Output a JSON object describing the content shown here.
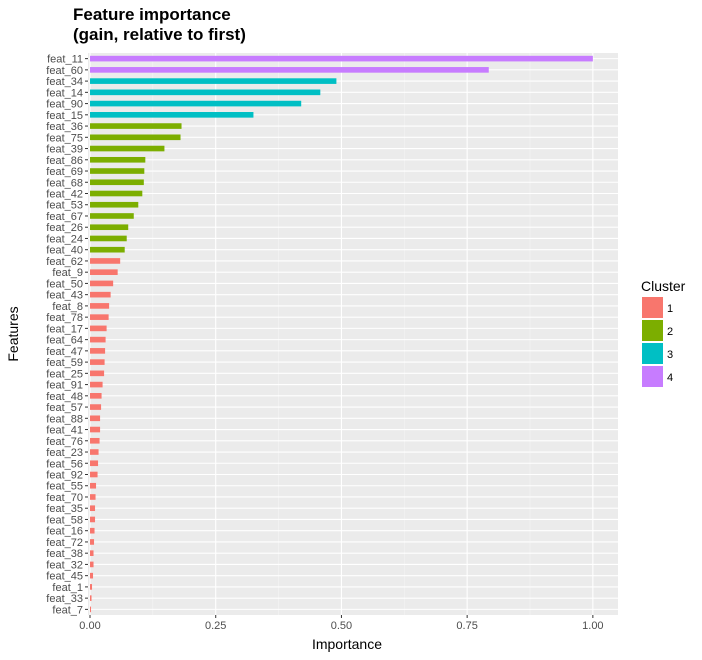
{
  "chart_data": {
    "type": "bar",
    "orientation": "horizontal",
    "title_lines": [
      "Feature importance",
      "(gain, relative to first)"
    ],
    "xlabel": "Importance",
    "ylabel": "Features",
    "xlim": [
      -0.004,
      1.05
    ],
    "xticks": [
      0,
      0.25,
      0.5,
      0.75,
      1.0
    ],
    "xtick_labels": [
      "0.00",
      "0.25",
      "0.50",
      "0.75",
      "1.00"
    ],
    "grid": true,
    "background": "#ebebeb",
    "legend": {
      "title": "Cluster",
      "placement": "right",
      "entries": [
        {
          "label": "1",
          "color": "#f8766d"
        },
        {
          "label": "2",
          "color": "#7cae00"
        },
        {
          "label": "3",
          "color": "#00bfc4"
        },
        {
          "label": "4",
          "color": "#c77cff"
        }
      ]
    },
    "categories": [
      "feat_11",
      "feat_60",
      "feat_34",
      "feat_14",
      "feat_90",
      "feat_15",
      "feat_36",
      "feat_75",
      "feat_39",
      "feat_86",
      "feat_69",
      "feat_68",
      "feat_42",
      "feat_53",
      "feat_67",
      "feat_26",
      "feat_24",
      "feat_40",
      "feat_62",
      "feat_9",
      "feat_50",
      "feat_43",
      "feat_8",
      "feat_78",
      "feat_17",
      "feat_64",
      "feat_47",
      "feat_59",
      "feat_25",
      "feat_91",
      "feat_48",
      "feat_57",
      "feat_88",
      "feat_41",
      "feat_76",
      "feat_23",
      "feat_56",
      "feat_92",
      "feat_55",
      "feat_70",
      "feat_35",
      "feat_58",
      "feat_16",
      "feat_72",
      "feat_38",
      "feat_32",
      "feat_45",
      "feat_1",
      "feat_33",
      "feat_7"
    ],
    "values": [
      1.0,
      0.793,
      0.49,
      0.458,
      0.42,
      0.325,
      0.182,
      0.18,
      0.148,
      0.11,
      0.108,
      0.107,
      0.104,
      0.096,
      0.087,
      0.076,
      0.073,
      0.069,
      0.06,
      0.055,
      0.046,
      0.041,
      0.038,
      0.037,
      0.033,
      0.031,
      0.03,
      0.029,
      0.028,
      0.025,
      0.023,
      0.022,
      0.02,
      0.02,
      0.019,
      0.017,
      0.016,
      0.015,
      0.012,
      0.011,
      0.01,
      0.01,
      0.009,
      0.008,
      0.007,
      0.007,
      0.006,
      0.004,
      0.003,
      0.002
    ],
    "clusters": [
      4,
      4,
      3,
      3,
      3,
      3,
      2,
      2,
      2,
      2,
      2,
      2,
      2,
      2,
      2,
      2,
      2,
      2,
      1,
      1,
      1,
      1,
      1,
      1,
      1,
      1,
      1,
      1,
      1,
      1,
      1,
      1,
      1,
      1,
      1,
      1,
      1,
      1,
      1,
      1,
      1,
      1,
      1,
      1,
      1,
      1,
      1,
      1,
      1,
      1
    ]
  }
}
